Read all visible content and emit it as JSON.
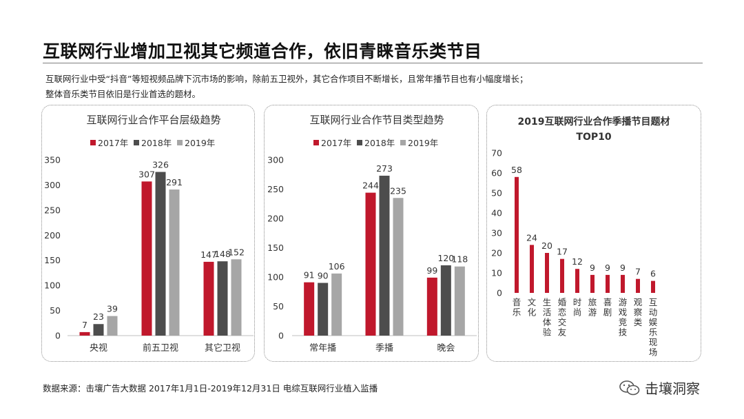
{
  "header": {
    "title": "互联网行业增加卫视其它频道合作，依旧青睐音乐类节目",
    "line1": "互联网行业中受“抖音”等短视频品牌下沉市场的影响，除前五卫视外，其它合作项目不断增长，且常年播节目也有小幅度增长；",
    "line2": "整体音乐类节目依旧是行业首选的题材。"
  },
  "footer": {
    "source": "数据来源：击壤广告大数据 2017年1月1日-2019年12月31日 电综互联网行业植入监播",
    "brand": "击壤洞察",
    "brand_icon": "wechat-icon"
  },
  "colors": {
    "y2017": "#c0182c",
    "y2018": "#4d4d4d",
    "y2019": "#a6a6a6",
    "bar": "#c0182c"
  },
  "chart_data": [
    {
      "type": "bar",
      "title": "互联网行业合作平台层级趋势",
      "categories": [
        "央视",
        "前五卫视",
        "其它卫视"
      ],
      "series": [
        {
          "name": "2017年",
          "values": [
            7,
            307,
            147
          ]
        },
        {
          "name": "2018年",
          "values": [
            23,
            326,
            148
          ]
        },
        {
          "name": "2019年",
          "values": [
            39,
            291,
            152
          ]
        }
      ],
      "yticks": [
        "0",
        "50",
        "100",
        "150",
        "200",
        "250",
        "300",
        "350"
      ],
      "ylim": [
        0,
        350
      ],
      "legend": "top",
      "grid": false
    },
    {
      "type": "bar",
      "title": "互联网行业合作节目类型趋势",
      "categories": [
        "常年播",
        "季播",
        "晚会"
      ],
      "series": [
        {
          "name": "2017年",
          "values": [
            91,
            244,
            99
          ]
        },
        {
          "name": "2018年",
          "values": [
            90,
            273,
            120
          ]
        },
        {
          "name": "2019年",
          "values": [
            106,
            235,
            118
          ]
        }
      ],
      "yticks": [
        "0",
        "50",
        "100",
        "150",
        "200",
        "250",
        "300"
      ],
      "ylim": [
        0,
        300
      ],
      "legend": "top",
      "grid": false
    },
    {
      "type": "bar",
      "title": "2019互联网行业合作季播节目题材",
      "title2": "TOP10",
      "categories": [
        "音乐",
        "文化",
        "生活体验",
        "婚恋交友",
        "时尚",
        "旅游",
        "喜剧",
        "游戏竞技",
        "观察类",
        "互动娱乐现场"
      ],
      "values": [
        58,
        24,
        20,
        17,
        12,
        9,
        9,
        9,
        7,
        6
      ],
      "yticks": [
        "0",
        "10",
        "20",
        "30",
        "40",
        "50",
        "60",
        "70"
      ],
      "ylim": [
        0,
        70
      ],
      "grid": false
    }
  ]
}
